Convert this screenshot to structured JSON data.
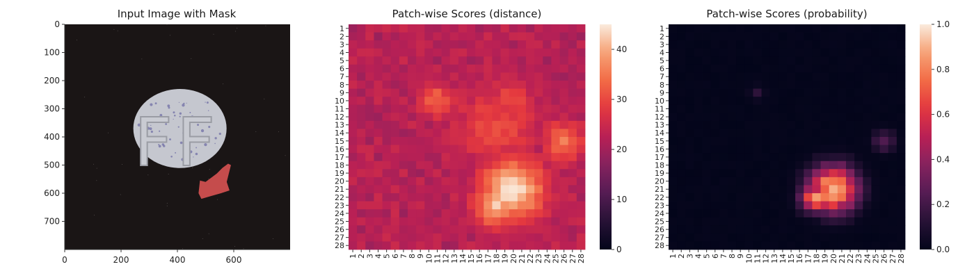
{
  "chart_data": [
    {
      "type": "image",
      "title": "Input Image with Mask",
      "x_ticks": [
        0,
        200,
        400,
        600
      ],
      "y_ticks": [
        0,
        100,
        200,
        300,
        400,
        500,
        600,
        700
      ],
      "xlim": [
        0,
        800
      ],
      "ylim": [
        800,
        0
      ],
      "image": {
        "background": "#1a1515",
        "pill_fill": "#c5c7cf",
        "pill_center": [
          409,
          370
        ],
        "pill_radii": [
          331,
          266
        ],
        "embossed_text": "FF",
        "mask_color": "#f05a5a",
        "mask_polygon": [
          [
            480,
            555
          ],
          [
            500,
            560
          ],
          [
            540,
            530
          ],
          [
            560,
            510
          ],
          [
            580,
            495
          ],
          [
            590,
            500
          ],
          [
            575,
            560
          ],
          [
            585,
            590
          ],
          [
            555,
            600
          ],
          [
            520,
            610
          ],
          [
            485,
            620
          ],
          [
            475,
            600
          ]
        ]
      }
    },
    {
      "type": "heatmap",
      "title": "Patch-wise Scores (distance)",
      "x_labels": [
        "1",
        "2",
        "3",
        "4",
        "5",
        "6",
        "7",
        "8",
        "9",
        "10",
        "11",
        "12",
        "13",
        "14",
        "15",
        "16",
        "17",
        "18",
        "19",
        "20",
        "21",
        "22",
        "23",
        "24",
        "25",
        "26",
        "27",
        "28"
      ],
      "y_labels": [
        "1",
        "2",
        "3",
        "4",
        "5",
        "6",
        "7",
        "8",
        "9",
        "10",
        "11",
        "12",
        "13",
        "14",
        "15",
        "16",
        "17",
        "18",
        "19",
        "20",
        "21",
        "22",
        "23",
        "24",
        "25",
        "26",
        "27",
        "28"
      ],
      "colorbar": {
        "min": 0,
        "max": 45,
        "ticks": [
          0,
          10,
          20,
          30,
          40
        ]
      },
      "colormap": "rocket",
      "base_value": 21,
      "hotspots": [
        {
          "row": 21,
          "col": 20,
          "peak": 45,
          "spread": 2.6
        },
        {
          "row": 23,
          "col": 18,
          "peak": 42,
          "spread": 1.8
        },
        {
          "row": 10,
          "col": 11,
          "peak": 33,
          "spread": 1.5
        },
        {
          "row": 10,
          "col": 20,
          "peak": 31,
          "spread": 1.6
        },
        {
          "row": 15,
          "col": 26,
          "peak": 35,
          "spread": 1.7
        },
        {
          "row": 13,
          "col": 18,
          "peak": 30,
          "spread": 3.5
        }
      ]
    },
    {
      "type": "heatmap",
      "title": "Patch-wise Scores (probability)",
      "x_labels": [
        "1",
        "2",
        "3",
        "4",
        "5",
        "6",
        "7",
        "8",
        "9",
        "10",
        "11",
        "12",
        "13",
        "14",
        "15",
        "16",
        "17",
        "18",
        "19",
        "20",
        "21",
        "22",
        "23",
        "24",
        "25",
        "26",
        "27",
        "28"
      ],
      "y_labels": [
        "1",
        "2",
        "3",
        "4",
        "5",
        "6",
        "7",
        "8",
        "9",
        "10",
        "11",
        "12",
        "13",
        "14",
        "15",
        "16",
        "17",
        "18",
        "19",
        "20",
        "21",
        "22",
        "23",
        "24",
        "25",
        "26",
        "27",
        "28"
      ],
      "colorbar": {
        "min": 0,
        "max": 1,
        "ticks": [
          "0.0",
          "0.2",
          "0.4",
          "0.6",
          "0.8",
          "1.0"
        ]
      },
      "colormap": "rocket",
      "base_value": 0.02,
      "hotspots": [
        {
          "row": 21,
          "col": 20,
          "peak": 1.0,
          "spread": 2.0
        },
        {
          "row": 22,
          "col": 18,
          "peak": 0.85,
          "spread": 1.3
        },
        {
          "row": 15,
          "col": 26,
          "peak": 0.25,
          "spread": 1.0
        },
        {
          "row": 9,
          "col": 11,
          "peak": 0.15,
          "spread": 0.7
        }
      ]
    }
  ]
}
